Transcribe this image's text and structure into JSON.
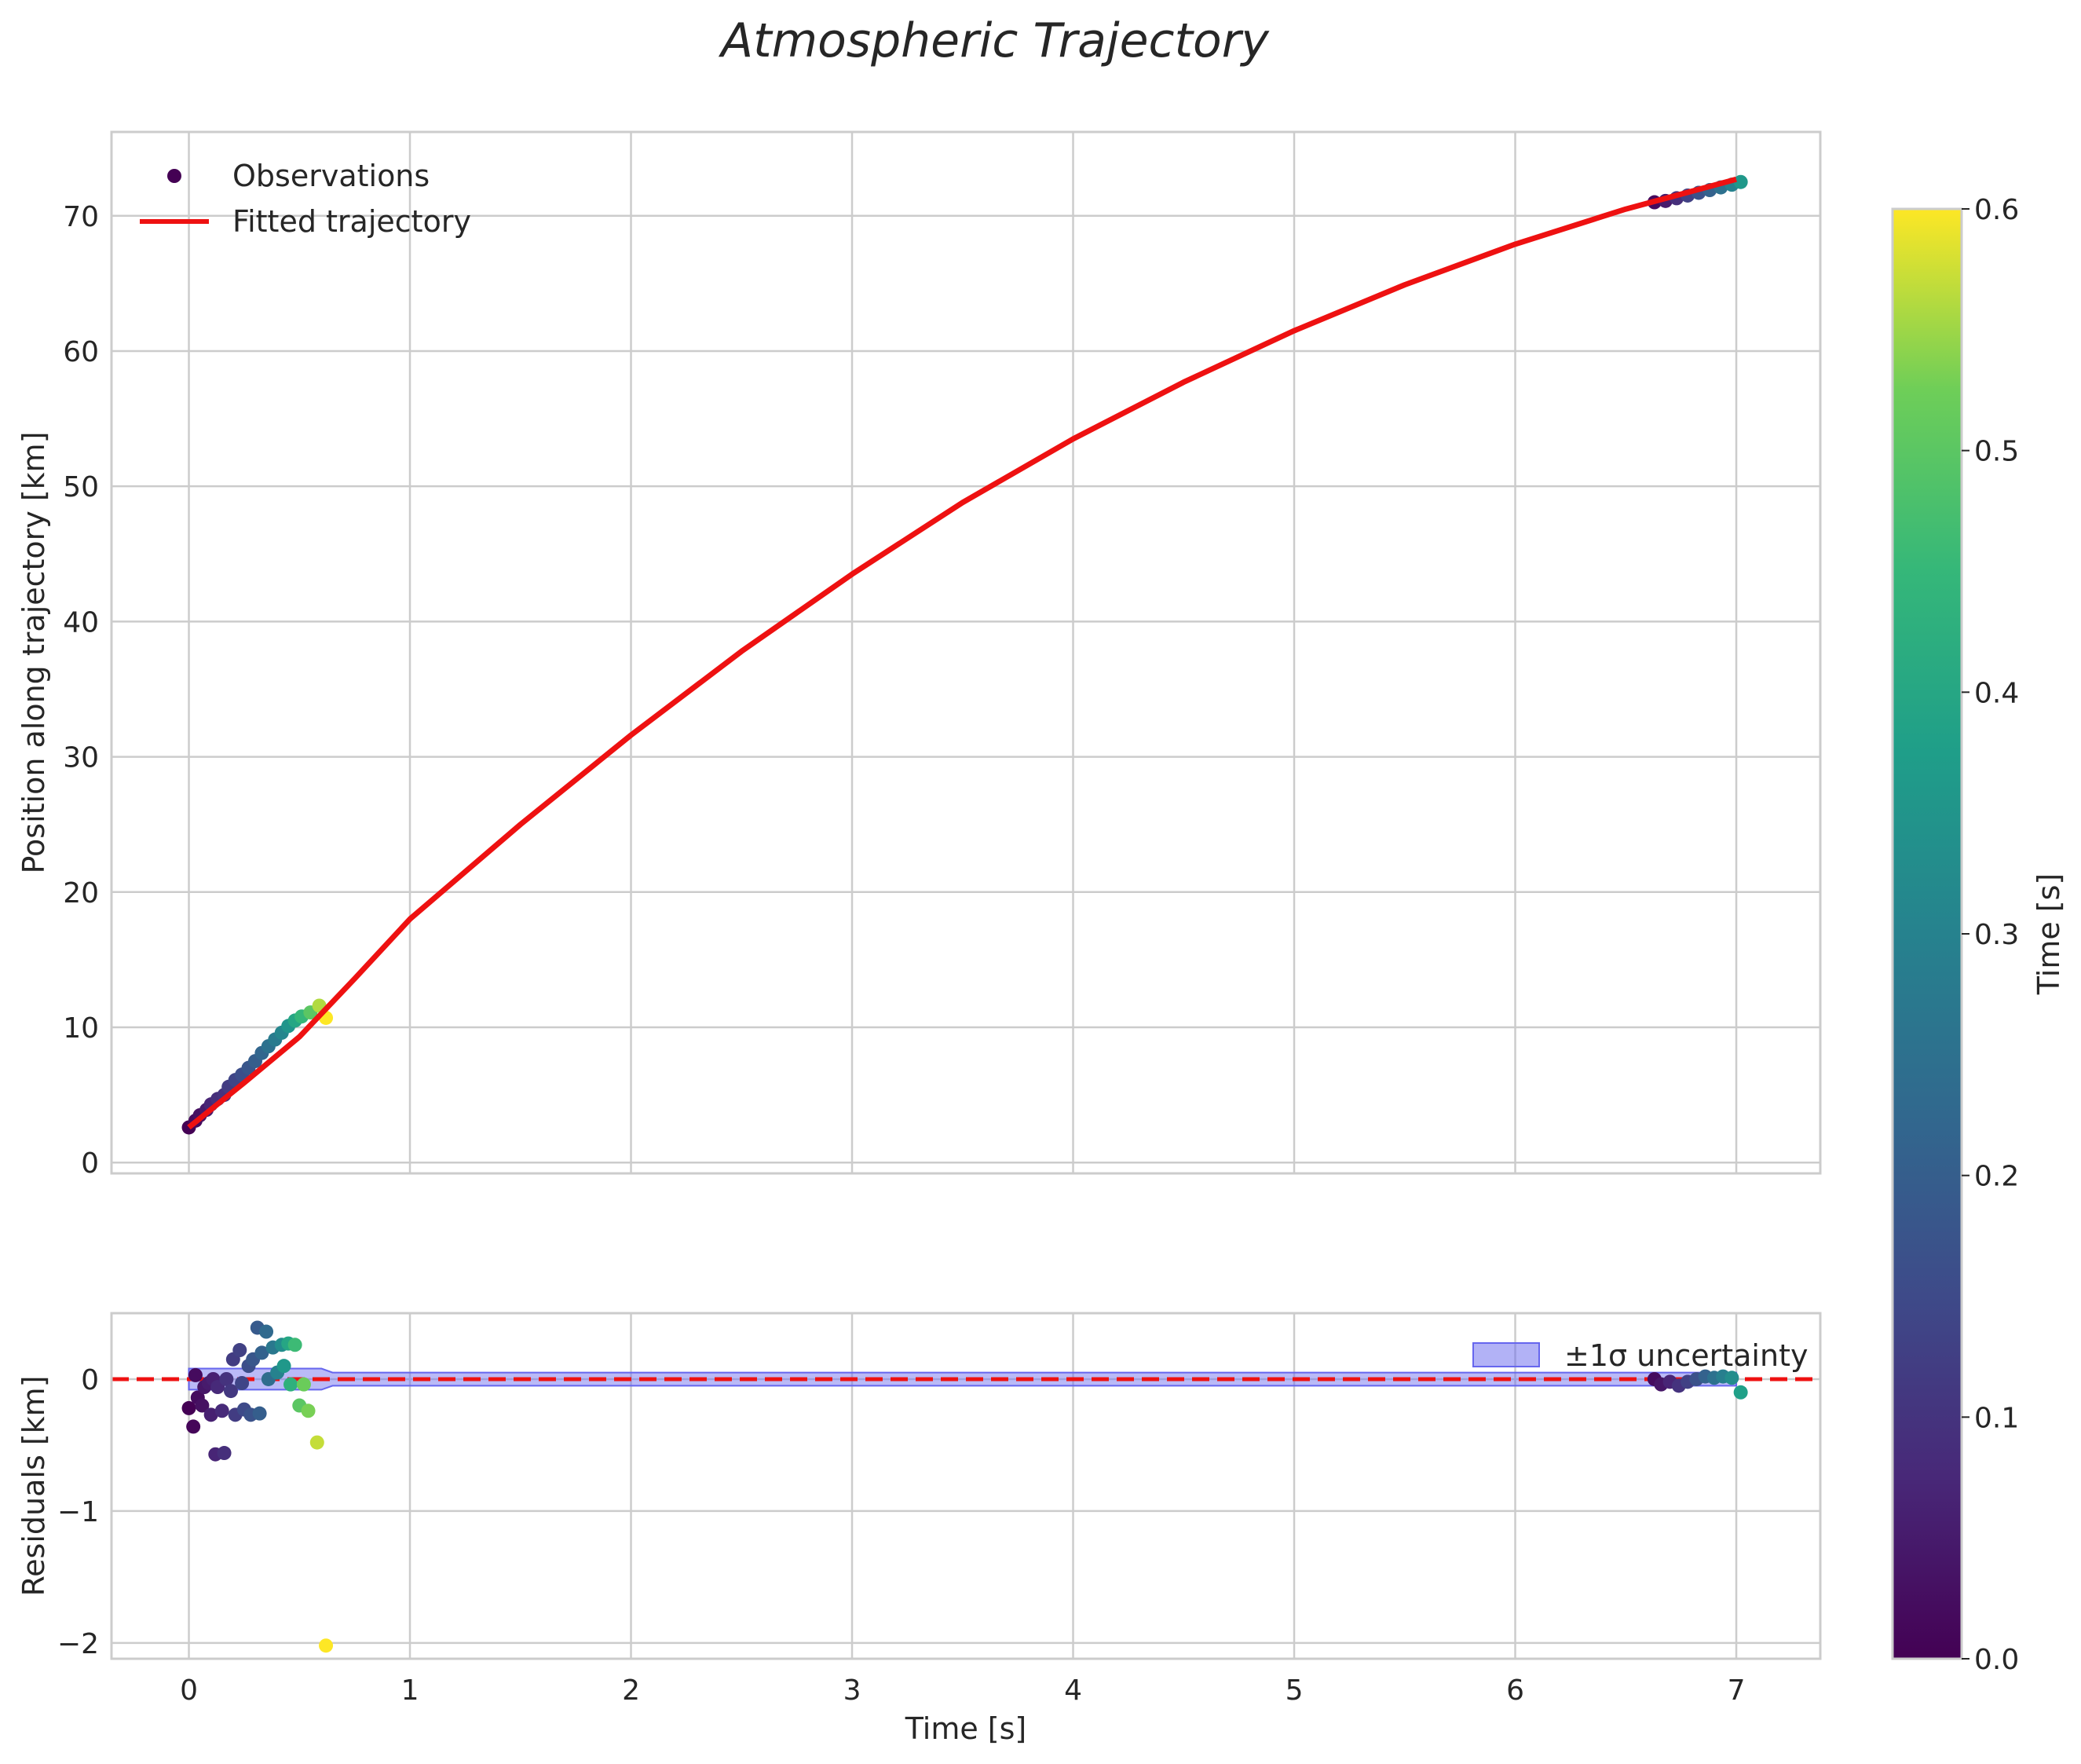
{
  "chart_data": {
    "title": "Atmospheric Trajectory",
    "colorbar": {
      "label": "Time [s]",
      "range": [
        0.0,
        0.6
      ],
      "ticks": [
        0.0,
        0.1,
        0.2,
        0.3,
        0.4,
        0.5,
        0.6
      ],
      "tick_labels": [
        "0.0",
        "0.1",
        "0.2",
        "0.3",
        "0.4",
        "0.5",
        "0.6"
      ],
      "colormap": "viridis"
    },
    "panels": [
      {
        "type": "scatter",
        "name": "trajectory",
        "ylabel": "Position along trajectory [km]",
        "xlim": [
          -0.35,
          7.38
        ],
        "ylim": [
          -0.8,
          76.2
        ],
        "xticks": [
          0,
          1,
          2,
          3,
          4,
          5,
          6,
          7
        ],
        "yticks": [
          0,
          10,
          20,
          30,
          40,
          50,
          60,
          70
        ],
        "ytick_labels": [
          "0",
          "10",
          "20",
          "30",
          "40",
          "50",
          "60",
          "70"
        ],
        "legend_position": "upper-left",
        "legend": [
          {
            "label": "Observations",
            "kind": "marker"
          },
          {
            "label": "Fitted trajectory",
            "kind": "line"
          }
        ],
        "fitted_trajectory": {
          "color": "#ee1111",
          "x": [
            0.0,
            0.25,
            0.5,
            0.75,
            1.0,
            1.5,
            2.0,
            2.5,
            3.0,
            3.5,
            4.0,
            4.5,
            5.0,
            5.5,
            6.0,
            6.5,
            7.0
          ],
          "y": [
            2.6,
            5.9,
            9.3,
            13.6,
            18.0,
            25.0,
            31.6,
            37.8,
            43.5,
            48.8,
            53.5,
            57.7,
            61.5,
            64.9,
            67.9,
            70.5,
            72.7
          ]
        },
        "observations": [
          {
            "x": 0.0,
            "y": 2.6,
            "t": 0.0
          },
          {
            "x": 0.03,
            "y": 3.1,
            "t": 0.02
          },
          {
            "x": 0.05,
            "y": 3.5,
            "t": 0.03
          },
          {
            "x": 0.08,
            "y": 3.9,
            "t": 0.05
          },
          {
            "x": 0.1,
            "y": 4.3,
            "t": 0.07
          },
          {
            "x": 0.13,
            "y": 4.7,
            "t": 0.09
          },
          {
            "x": 0.16,
            "y": 5.0,
            "t": 0.1
          },
          {
            "x": 0.18,
            "y": 5.6,
            "t": 0.12
          },
          {
            "x": 0.21,
            "y": 6.1,
            "t": 0.14
          },
          {
            "x": 0.24,
            "y": 6.5,
            "t": 0.16
          },
          {
            "x": 0.27,
            "y": 7.0,
            "t": 0.18
          },
          {
            "x": 0.3,
            "y": 7.5,
            "t": 0.2
          },
          {
            "x": 0.33,
            "y": 8.1,
            "t": 0.22
          },
          {
            "x": 0.36,
            "y": 8.6,
            "t": 0.25
          },
          {
            "x": 0.39,
            "y": 9.1,
            "t": 0.28
          },
          {
            "x": 0.42,
            "y": 9.6,
            "t": 0.31
          },
          {
            "x": 0.45,
            "y": 10.1,
            "t": 0.35
          },
          {
            "x": 0.48,
            "y": 10.5,
            "t": 0.4
          },
          {
            "x": 0.51,
            "y": 10.8,
            "t": 0.45
          },
          {
            "x": 0.55,
            "y": 11.1,
            "t": 0.5
          },
          {
            "x": 0.59,
            "y": 11.6,
            "t": 0.56
          },
          {
            "x": 0.62,
            "y": 10.7,
            "t": 0.6
          },
          {
            "x": 6.63,
            "y": 71.0,
            "t": 0.02
          },
          {
            "x": 6.68,
            "y": 71.1,
            "t": 0.05
          },
          {
            "x": 6.73,
            "y": 71.3,
            "t": 0.09
          },
          {
            "x": 6.78,
            "y": 71.5,
            "t": 0.13
          },
          {
            "x": 6.83,
            "y": 71.7,
            "t": 0.17
          },
          {
            "x": 6.88,
            "y": 71.9,
            "t": 0.21
          },
          {
            "x": 6.93,
            "y": 72.1,
            "t": 0.25
          },
          {
            "x": 6.98,
            "y": 72.3,
            "t": 0.3
          },
          {
            "x": 7.02,
            "y": 72.5,
            "t": 0.36
          }
        ]
      },
      {
        "type": "scatter",
        "name": "residuals",
        "xlabel": "Time [s]",
        "ylabel": "Residuals [km]",
        "xlim": [
          -0.35,
          7.38
        ],
        "ylim": [
          -2.12,
          0.5
        ],
        "xticks": [
          0,
          1,
          2,
          3,
          4,
          5,
          6,
          7
        ],
        "xtick_labels": [
          "0",
          "1",
          "2",
          "3",
          "4",
          "5",
          "6",
          "7"
        ],
        "yticks": [
          -2,
          -1,
          0
        ],
        "ytick_labels": [
          "−2",
          "−1",
          "0"
        ],
        "legend_position": "upper-right",
        "legend": [
          {
            "label": "±1σ uncertainty",
            "kind": "patch"
          }
        ],
        "zero_line": {
          "y": 0,
          "color": "#ee1111",
          "style": "dashed"
        },
        "uncertainty_band": {
          "color": "#6666ee",
          "x": [
            0.0,
            0.6,
            0.65,
            7.0
          ],
          "sigma": [
            0.08,
            0.08,
            0.05,
            0.05
          ]
        },
        "residuals": [
          {
            "x": 0.0,
            "y": -0.22,
            "t": 0.0
          },
          {
            "x": 0.02,
            "y": -0.36,
            "t": 0.01
          },
          {
            "x": 0.03,
            "y": 0.03,
            "t": 0.02
          },
          {
            "x": 0.04,
            "y": -0.14,
            "t": 0.02
          },
          {
            "x": 0.06,
            "y": -0.2,
            "t": 0.03
          },
          {
            "x": 0.07,
            "y": -0.06,
            "t": 0.04
          },
          {
            "x": 0.09,
            "y": -0.03,
            "t": 0.05
          },
          {
            "x": 0.1,
            "y": -0.27,
            "t": 0.06
          },
          {
            "x": 0.11,
            "y": 0.0,
            "t": 0.06
          },
          {
            "x": 0.12,
            "y": -0.57,
            "t": 0.07
          },
          {
            "x": 0.13,
            "y": -0.06,
            "t": 0.08
          },
          {
            "x": 0.15,
            "y": -0.24,
            "t": 0.08
          },
          {
            "x": 0.16,
            "y": -0.56,
            "t": 0.09
          },
          {
            "x": 0.17,
            "y": 0.0,
            "t": 0.1
          },
          {
            "x": 0.19,
            "y": -0.09,
            "t": 0.11
          },
          {
            "x": 0.2,
            "y": 0.15,
            "t": 0.12
          },
          {
            "x": 0.21,
            "y": -0.27,
            "t": 0.12
          },
          {
            "x": 0.23,
            "y": 0.22,
            "t": 0.13
          },
          {
            "x": 0.24,
            "y": -0.03,
            "t": 0.14
          },
          {
            "x": 0.25,
            "y": -0.23,
            "t": 0.15
          },
          {
            "x": 0.27,
            "y": 0.1,
            "t": 0.16
          },
          {
            "x": 0.28,
            "y": -0.27,
            "t": 0.17
          },
          {
            "x": 0.29,
            "y": 0.15,
            "t": 0.18
          },
          {
            "x": 0.31,
            "y": 0.39,
            "t": 0.19
          },
          {
            "x": 0.32,
            "y": -0.26,
            "t": 0.2
          },
          {
            "x": 0.33,
            "y": 0.2,
            "t": 0.21
          },
          {
            "x": 0.35,
            "y": 0.36,
            "t": 0.23
          },
          {
            "x": 0.36,
            "y": 0.0,
            "t": 0.24
          },
          {
            "x": 0.38,
            "y": 0.24,
            "t": 0.27
          },
          {
            "x": 0.4,
            "y": 0.05,
            "t": 0.3
          },
          {
            "x": 0.42,
            "y": 0.26,
            "t": 0.33
          },
          {
            "x": 0.43,
            "y": 0.1,
            "t": 0.36
          },
          {
            "x": 0.45,
            "y": 0.27,
            "t": 0.4
          },
          {
            "x": 0.46,
            "y": -0.04,
            "t": 0.43
          },
          {
            "x": 0.48,
            "y": 0.26,
            "t": 0.46
          },
          {
            "x": 0.5,
            "y": -0.2,
            "t": 0.5
          },
          {
            "x": 0.52,
            "y": -0.04,
            "t": 0.52
          },
          {
            "x": 0.54,
            "y": -0.24,
            "t": 0.53
          },
          {
            "x": 0.58,
            "y": -0.48,
            "t": 0.57
          },
          {
            "x": 0.62,
            "y": -2.02,
            "t": 0.6
          },
          {
            "x": 6.63,
            "y": 0.0,
            "t": 0.02
          },
          {
            "x": 6.66,
            "y": -0.04,
            "t": 0.04
          },
          {
            "x": 6.7,
            "y": -0.02,
            "t": 0.07
          },
          {
            "x": 6.74,
            "y": -0.05,
            "t": 0.1
          },
          {
            "x": 6.78,
            "y": -0.02,
            "t": 0.13
          },
          {
            "x": 6.82,
            "y": 0.0,
            "t": 0.17
          },
          {
            "x": 6.86,
            "y": 0.02,
            "t": 0.21
          },
          {
            "x": 6.9,
            "y": 0.01,
            "t": 0.25
          },
          {
            "x": 6.94,
            "y": 0.02,
            "t": 0.29
          },
          {
            "x": 6.98,
            "y": 0.01,
            "t": 0.33
          },
          {
            "x": 7.02,
            "y": -0.1,
            "t": 0.38
          }
        ]
      }
    ]
  }
}
